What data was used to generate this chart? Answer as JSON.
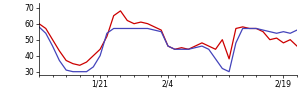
{
  "red_y": [
    60,
    57,
    50,
    43,
    37,
    35,
    34,
    36,
    40,
    44,
    52,
    65,
    68,
    62,
    60,
    61,
    60,
    58,
    56,
    46,
    44,
    45,
    44,
    46,
    48,
    46,
    44,
    50,
    38,
    57,
    58,
    57,
    57,
    55,
    50,
    51,
    48,
    50,
    46
  ],
  "blue_y": [
    58,
    54,
    46,
    37,
    31,
    30,
    30,
    30,
    33,
    40,
    54,
    57,
    57,
    57,
    57,
    57,
    57,
    56,
    55,
    46,
    44,
    44,
    44,
    45,
    46,
    44,
    38,
    32,
    30,
    48,
    57,
    57,
    57,
    56,
    55,
    54,
    55,
    54,
    56
  ],
  "xlim": [
    0,
    38
  ],
  "ylim": [
    28,
    73
  ],
  "yticks": [
    30,
    40,
    50,
    60,
    70
  ],
  "xtick_major_pos": [
    9,
    19,
    36
  ],
  "xtick_major_labels": [
    "1/21",
    "2/4",
    "2/19"
  ],
  "xtick_minor_pos": [
    0,
    2,
    4,
    6,
    8,
    10,
    12,
    14,
    16,
    18,
    20,
    22,
    24,
    26,
    28,
    30,
    32,
    34,
    36,
    38
  ],
  "red_color": "#cc0000",
  "blue_color": "#4444bb",
  "bg_color": "#ffffff",
  "linewidth": 0.9,
  "figwidth": 3.0,
  "figheight": 0.96,
  "dpi": 100
}
